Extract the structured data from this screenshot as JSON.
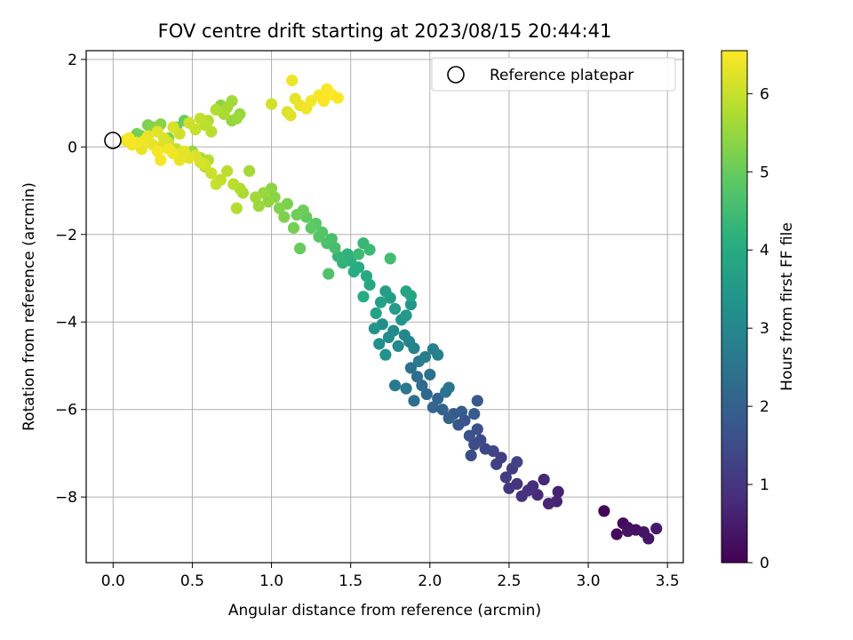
{
  "chart_data": {
    "type": "scatter",
    "title": "FOV centre drift starting at 2023/08/15 20:44:41",
    "xlabel": "Angular distance from reference (arcmin)",
    "ylabel": "Rotation from reference (arcmin)",
    "xlim": [
      -0.17,
      3.6
    ],
    "ylim": [
      -9.5,
      2.2
    ],
    "xticks": [
      0.0,
      0.5,
      1.0,
      1.5,
      2.0,
      2.5,
      3.0,
      3.5
    ],
    "xtick_labels": [
      "0.0",
      "0.5",
      "1.0",
      "1.5",
      "2.0",
      "2.5",
      "3.0",
      "3.5"
    ],
    "yticks": [
      2,
      0,
      -2,
      -4,
      -6,
      -8
    ],
    "ytick_labels": [
      "2",
      "0",
      "−2",
      "−4",
      "−6",
      "−8"
    ],
    "grid": true,
    "legend": {
      "placement": "top-right",
      "entries": [
        "Reference platepar"
      ]
    },
    "colormap": "viridis",
    "colorbar": {
      "label": "Hours from first FF file",
      "range": [
        0,
        6.55
      ],
      "ticks": [
        0,
        1,
        2,
        3,
        4,
        5,
        6
      ],
      "tick_labels": [
        "0",
        "1",
        "2",
        "3",
        "4",
        "5",
        "6"
      ]
    },
    "reference_point": {
      "x": 0.0,
      "y": 0.0
    },
    "series": [
      {
        "points_xyc": [
          [
            3.1,
            -8.32,
            0.1
          ],
          [
            3.18,
            -8.85,
            0.15
          ],
          [
            3.22,
            -8.6,
            0.2
          ],
          [
            3.25,
            -8.7,
            0.25
          ],
          [
            3.3,
            -8.75,
            0.3
          ],
          [
            3.35,
            -8.8,
            0.35
          ],
          [
            3.38,
            -8.95,
            0.4
          ],
          [
            3.43,
            -8.72,
            0.45
          ],
          [
            3.25,
            -8.78,
            0.3
          ],
          [
            2.81,
            -7.88,
            0.6
          ],
          [
            2.8,
            -8.1,
            0.65
          ],
          [
            2.75,
            -8.15,
            0.7
          ],
          [
            2.72,
            -7.6,
            0.75
          ],
          [
            2.68,
            -7.95,
            0.8
          ],
          [
            2.65,
            -7.75,
            0.85
          ],
          [
            2.62,
            -7.85,
            0.9
          ],
          [
            2.58,
            -7.98,
            0.95
          ],
          [
            2.55,
            -7.7,
            1.0
          ],
          [
            2.5,
            -7.8,
            1.05
          ],
          [
            2.52,
            -7.35,
            1.1
          ],
          [
            2.48,
            -7.55,
            1.15
          ],
          [
            2.45,
            -7.1,
            1.2
          ],
          [
            2.42,
            -7.25,
            1.25
          ],
          [
            2.55,
            -7.2,
            1.3
          ],
          [
            2.4,
            -6.95,
            1.35
          ],
          [
            2.35,
            -6.9,
            1.4
          ],
          [
            2.32,
            -6.7,
            1.45
          ],
          [
            2.28,
            -6.8,
            1.5
          ],
          [
            2.26,
            -7.05,
            1.55
          ],
          [
            2.3,
            -6.45,
            1.6
          ],
          [
            2.25,
            -6.6,
            1.65
          ],
          [
            2.22,
            -6.25,
            1.7
          ],
          [
            2.18,
            -6.35,
            1.75
          ],
          [
            2.15,
            -6.1,
            1.8
          ],
          [
            2.3,
            -5.8,
            1.85
          ],
          [
            2.28,
            -6.1,
            1.9
          ],
          [
            2.2,
            -6.05,
            1.95
          ],
          [
            2.12,
            -6.2,
            2.0
          ],
          [
            2.08,
            -6.0,
            2.05
          ],
          [
            2.05,
            -5.75,
            2.1
          ],
          [
            2.02,
            -5.95,
            2.15
          ],
          [
            1.98,
            -5.65,
            2.2
          ],
          [
            1.95,
            -5.45,
            2.25
          ],
          [
            1.9,
            -5.8,
            2.3
          ],
          [
            1.92,
            -5.25,
            2.35
          ],
          [
            1.88,
            -5.05,
            2.4
          ],
          [
            2.0,
            -5.2,
            2.45
          ],
          [
            2.1,
            -5.6,
            2.5
          ],
          [
            2.12,
            -5.5,
            2.55
          ],
          [
            1.85,
            -5.52,
            2.6
          ],
          [
            1.78,
            -5.45,
            2.65
          ],
          [
            1.93,
            -4.9,
            2.7
          ],
          [
            1.97,
            -4.8,
            2.75
          ],
          [
            2.02,
            -4.62,
            2.8
          ],
          [
            2.05,
            -4.75,
            2.85
          ],
          [
            1.9,
            -4.6,
            2.9
          ],
          [
            1.87,
            -4.45,
            2.95
          ],
          [
            1.84,
            -4.3,
            3.0
          ],
          [
            1.8,
            -4.55,
            3.05
          ],
          [
            1.77,
            -4.2,
            3.1
          ],
          [
            1.74,
            -4.35,
            3.15
          ],
          [
            1.7,
            -4.05,
            3.2
          ],
          [
            1.68,
            -4.5,
            3.25
          ],
          [
            1.72,
            -4.75,
            3.3
          ],
          [
            1.65,
            -4.15,
            3.35
          ],
          [
            1.82,
            -3.95,
            3.4
          ],
          [
            1.88,
            -3.6,
            3.45
          ],
          [
            1.85,
            -3.85,
            3.5
          ],
          [
            1.78,
            -3.7,
            3.55
          ],
          [
            1.75,
            -3.45,
            3.6
          ],
          [
            1.72,
            -3.3,
            3.65
          ],
          [
            1.69,
            -3.55,
            3.7
          ],
          [
            1.66,
            -3.8,
            3.75
          ],
          [
            1.85,
            -3.3,
            3.8
          ],
          [
            1.88,
            -3.4,
            3.85
          ],
          [
            1.62,
            -3.15,
            3.9
          ],
          [
            1.6,
            -2.95,
            3.95
          ],
          [
            1.58,
            -3.42,
            4.0
          ],
          [
            1.55,
            -2.75,
            4.05
          ],
          [
            1.52,
            -2.85,
            4.1
          ],
          [
            1.5,
            -2.6,
            4.15
          ],
          [
            1.48,
            -2.45,
            4.2
          ],
          [
            1.45,
            -2.65,
            4.25
          ],
          [
            1.42,
            -2.5,
            4.3
          ],
          [
            1.58,
            -2.2,
            4.35
          ],
          [
            1.62,
            -2.35,
            4.4
          ],
          [
            1.55,
            -2.45,
            4.45
          ],
          [
            1.75,
            -2.55,
            4.5
          ],
          [
            1.4,
            -2.3,
            4.55
          ],
          [
            1.38,
            -2.1,
            4.6
          ],
          [
            1.35,
            -2.2,
            4.65
          ],
          [
            1.36,
            -2.9,
            4.7
          ],
          [
            1.32,
            -1.95,
            4.75
          ],
          [
            1.3,
            -2.05,
            4.8
          ],
          [
            1.28,
            -1.75,
            4.85
          ],
          [
            1.25,
            -1.85,
            4.9
          ],
          [
            1.22,
            -1.6,
            4.95
          ],
          [
            1.18,
            -2.32,
            5.0
          ],
          [
            1.2,
            -1.45,
            5.05
          ],
          [
            1.16,
            -1.55,
            5.1
          ],
          [
            1.14,
            -1.85,
            5.15
          ],
          [
            1.1,
            -1.3,
            5.2
          ],
          [
            1.08,
            -1.6,
            5.25
          ],
          [
            1.05,
            -1.4,
            5.3
          ],
          [
            1.02,
            -1.15,
            5.35
          ],
          [
            1.0,
            -0.95,
            5.4
          ],
          [
            0.98,
            -1.25,
            5.45
          ],
          [
            0.95,
            -1.05,
            5.5
          ],
          [
            0.92,
            -1.35,
            5.55
          ],
          [
            0.9,
            -1.15,
            5.6
          ],
          [
            0.86,
            -0.55,
            5.65
          ],
          [
            0.82,
            -1.05,
            5.7
          ],
          [
            0.8,
            -0.95,
            5.75
          ],
          [
            0.78,
            -1.4,
            5.8
          ],
          [
            0.76,
            -0.85,
            5.85
          ],
          [
            0.72,
            -0.55,
            5.9
          ],
          [
            0.68,
            -0.75,
            5.95
          ],
          [
            0.65,
            -0.85,
            6.0
          ],
          [
            0.62,
            -0.6,
            6.05
          ],
          [
            0.58,
            -0.4,
            6.1
          ],
          [
            0.55,
            -0.35,
            6.15
          ],
          [
            0.52,
            -0.2,
            6.2
          ],
          [
            0.48,
            -0.25,
            6.25
          ],
          [
            0.45,
            -0.1,
            6.3
          ],
          [
            0.42,
            -0.3,
            6.35
          ],
          [
            0.38,
            -0.15,
            6.4
          ],
          [
            0.35,
            -0.05,
            6.45
          ],
          [
            0.3,
            -0.3,
            6.5
          ],
          [
            0.28,
            -0.1,
            6.5
          ],
          [
            0.5,
            -0.1,
            5.5
          ],
          [
            0.55,
            -0.25,
            5.6
          ],
          [
            0.58,
            -0.45,
            5.7
          ],
          [
            0.6,
            -0.3,
            5.8
          ],
          [
            0.45,
            -0.2,
            5.9
          ],
          [
            0.4,
            -0.05,
            6.0
          ],
          [
            0.35,
            0.1,
            6.1
          ],
          [
            0.3,
            0.0,
            6.2
          ],
          [
            0.25,
            0.05,
            6.3
          ],
          [
            0.2,
            0.15,
            6.4
          ],
          [
            0.15,
            0.1,
            6.45
          ],
          [
            0.1,
            0.2,
            6.5
          ],
          [
            0.12,
            0.05,
            6.45
          ],
          [
            0.08,
            0.15,
            6.4
          ],
          [
            0.18,
            -0.05,
            6.35
          ],
          [
            0.22,
            0.25,
            6.3
          ],
          [
            0.28,
            0.35,
            6.25
          ],
          [
            0.32,
            0.2,
            6.2
          ],
          [
            0.38,
            0.45,
            6.15
          ],
          [
            0.42,
            0.3,
            6.1
          ],
          [
            0.48,
            0.55,
            6.05
          ],
          [
            0.52,
            0.4,
            6.0
          ],
          [
            0.55,
            0.65,
            5.95
          ],
          [
            0.58,
            0.5,
            5.9
          ],
          [
            0.62,
            0.35,
            5.85
          ],
          [
            0.6,
            0.6,
            5.8
          ],
          [
            0.65,
            0.85,
            5.75
          ],
          [
            0.7,
            0.75,
            5.7
          ],
          [
            0.72,
            0.9,
            5.65
          ],
          [
            0.75,
            1.05,
            5.6
          ],
          [
            0.78,
            0.65,
            5.55
          ],
          [
            0.8,
            0.75,
            5.5
          ],
          [
            0.75,
            0.6,
            5.45
          ],
          [
            0.68,
            0.95,
            5.4
          ],
          [
            0.3,
            0.52,
            5.35
          ],
          [
            0.25,
            0.45,
            5.3
          ],
          [
            0.35,
            0.2,
            5.25
          ],
          [
            0.22,
            0.5,
            5.2
          ],
          [
            0.15,
            0.3,
            5.15
          ],
          [
            0.18,
            0.25,
            5.1
          ],
          [
            0.4,
            0.45,
            5.05
          ],
          [
            0.45,
            0.6,
            5.0
          ],
          [
            1.0,
            0.98,
            6.1
          ],
          [
            1.1,
            0.8,
            6.2
          ],
          [
            1.12,
            0.72,
            6.25
          ],
          [
            1.15,
            1.1,
            6.3
          ],
          [
            1.18,
            0.95,
            6.35
          ],
          [
            1.13,
            1.52,
            6.4
          ],
          [
            1.22,
            0.88,
            6.42
          ],
          [
            1.25,
            1.05,
            6.45
          ],
          [
            1.3,
            1.18,
            6.48
          ],
          [
            1.33,
            1.05,
            6.5
          ],
          [
            1.35,
            1.32,
            6.52
          ],
          [
            1.38,
            1.2,
            6.53
          ],
          [
            1.42,
            1.12,
            6.55
          ]
        ]
      }
    ]
  }
}
